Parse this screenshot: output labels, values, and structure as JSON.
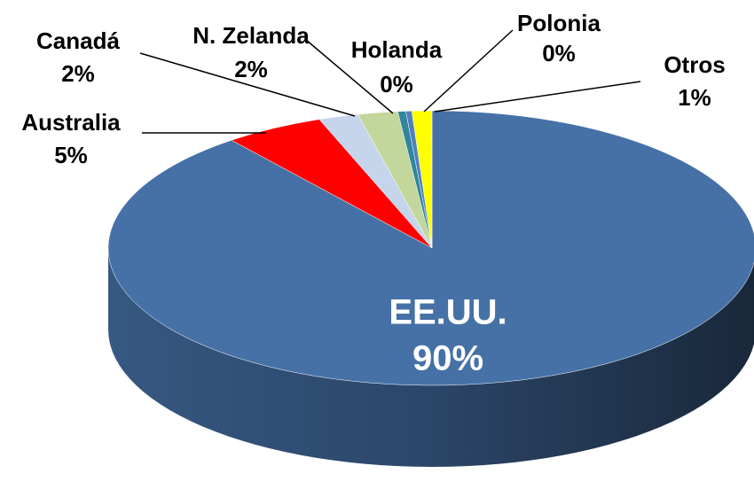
{
  "chart_data": {
    "type": "pie",
    "categories": [
      "EE.UU.",
      "Australia",
      "Canadá",
      "N. Zelanda",
      "Holanda",
      "Polonia",
      "Otros"
    ],
    "values": [
      90,
      5,
      2,
      2,
      0.4,
      0.3,
      1
    ],
    "value_labels": [
      "90%",
      "5%",
      "2%",
      "2%",
      "0%",
      "0%",
      "1%"
    ],
    "colors": [
      "#4671a7",
      "#ff0000",
      "#c5d5ec",
      "#c3d69b",
      "#31859c",
      "#4f81bd",
      "#ffff00"
    ]
  }
}
